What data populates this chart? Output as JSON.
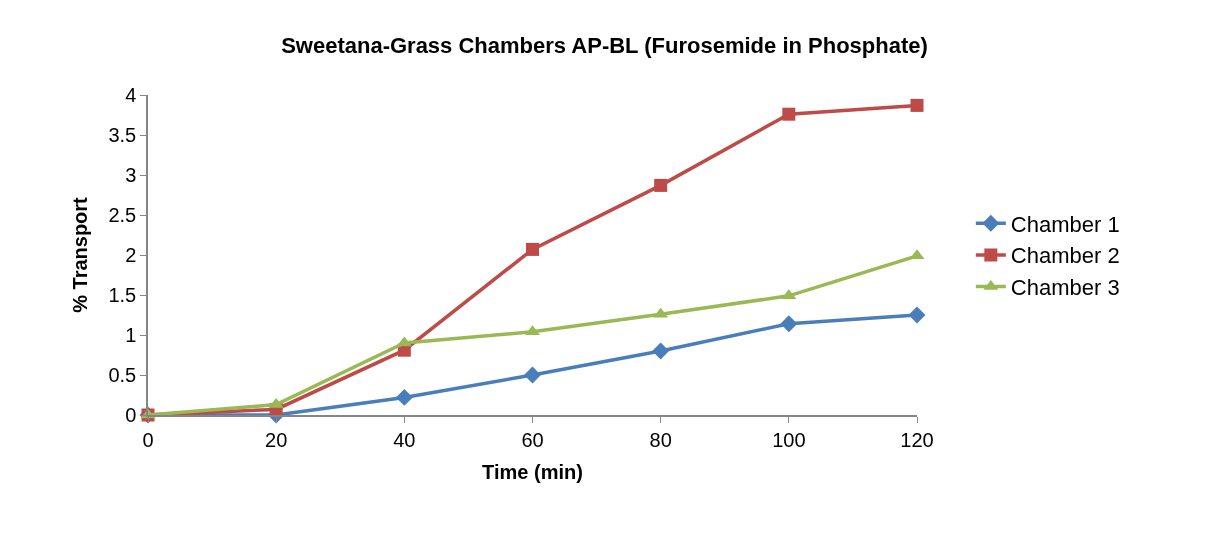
{
  "chart_data": {
    "type": "line",
    "title": "Sweetana-Grass Chambers AP-BL (Furosemide in Phosphate)",
    "xlabel": "Time (min)",
    "ylabel": "% Transport",
    "x": [
      0,
      20,
      40,
      60,
      80,
      100,
      120
    ],
    "series": [
      {
        "name": "Chamber 1",
        "color": "#4a7ebb",
        "marker": "diamond",
        "values": [
          0,
          0,
          0.22,
          0.5,
          0.8,
          1.14,
          1.25
        ]
      },
      {
        "name": "Chamber 2",
        "color": "#be4b48",
        "marker": "square",
        "values": [
          0,
          0.07,
          0.81,
          2.07,
          2.87,
          3.76,
          3.87
        ]
      },
      {
        "name": "Chamber 3",
        "color": "#98b954",
        "marker": "triangle",
        "values": [
          0,
          0.13,
          0.9,
          1.04,
          1.26,
          1.49,
          1.99
        ]
      }
    ],
    "xlim": [
      0,
      120
    ],
    "xticks": [
      0,
      20,
      40,
      60,
      80,
      100,
      120
    ],
    "ylim": [
      0,
      4
    ],
    "yticks": [
      0,
      0.5,
      1,
      1.5,
      2,
      2.5,
      3,
      3.5,
      4
    ],
    "legend": "right",
    "line_style": "solid"
  }
}
